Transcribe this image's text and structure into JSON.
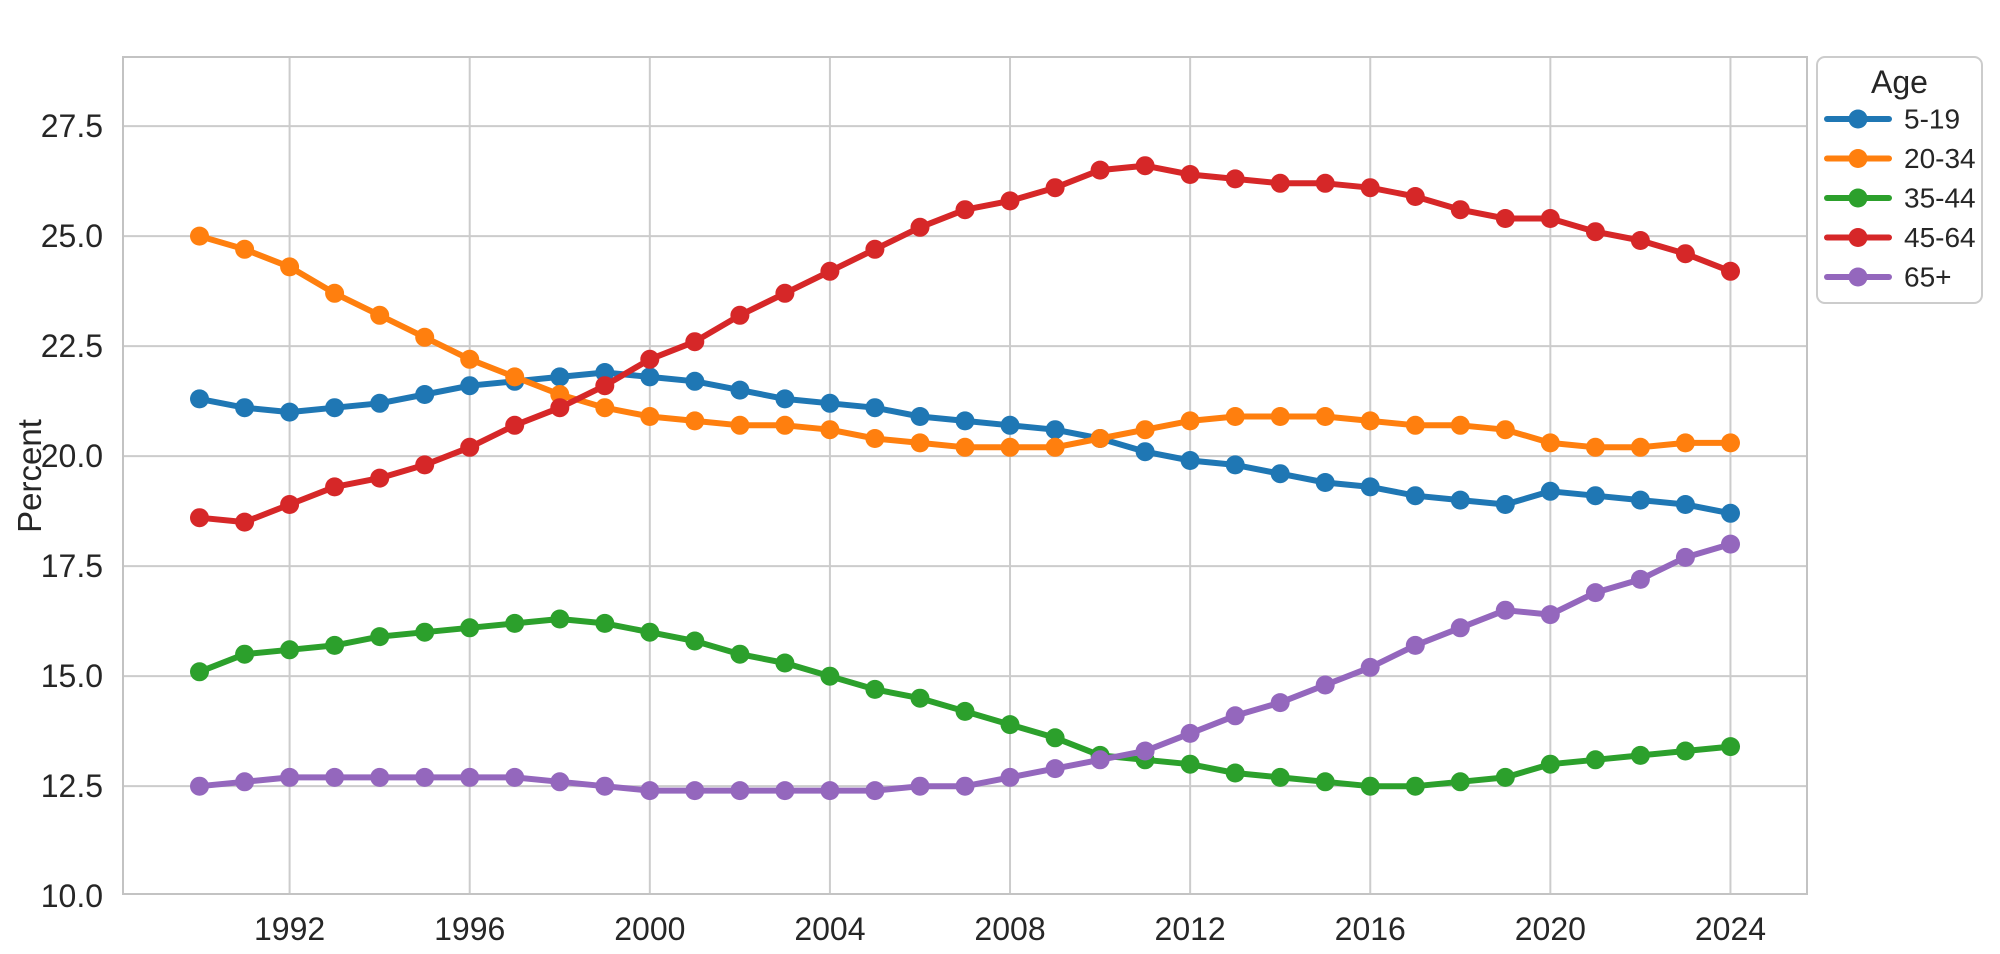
{
  "chart_data": {
    "type": "line",
    "title": "",
    "xlabel": "",
    "ylabel": "Percent",
    "grid": true,
    "background_color": "#ffffff",
    "grid_color": "#cccccc",
    "spine_color": "#c3c3c3",
    "text_color": "#262626",
    "xlim": [
      1988.3,
      2025.7
    ],
    "ylim": [
      10.05,
      29.07
    ],
    "xticks": [
      1992,
      1996,
      2000,
      2004,
      2008,
      2012,
      2016,
      2020,
      2024
    ],
    "yticks": [
      10.0,
      12.5,
      15.0,
      17.5,
      20.0,
      22.5,
      25.0,
      27.5
    ],
    "x": [
      1990,
      1991,
      1992,
      1993,
      1994,
      1995,
      1996,
      1997,
      1998,
      1999,
      2000,
      2001,
      2002,
      2003,
      2004,
      2005,
      2006,
      2007,
      2008,
      2009,
      2010,
      2011,
      2012,
      2013,
      2014,
      2015,
      2016,
      2017,
      2018,
      2019,
      2020,
      2021,
      2022,
      2023,
      2024
    ],
    "legend": {
      "title": "Age",
      "position": "upper-right-outside"
    },
    "series": [
      {
        "name": "5-19",
        "color": "#1f77b4",
        "values": [
          21.3,
          21.1,
          21.0,
          21.1,
          21.2,
          21.4,
          21.6,
          21.7,
          21.8,
          21.9,
          21.8,
          21.7,
          21.5,
          21.3,
          21.2,
          21.1,
          20.9,
          20.8,
          20.7,
          20.6,
          20.4,
          20.1,
          19.9,
          19.8,
          19.6,
          19.4,
          19.3,
          19.1,
          19.0,
          18.9,
          19.2,
          19.1,
          19.0,
          18.9,
          18.7
        ]
      },
      {
        "name": "20-34",
        "color": "#ff7f0e",
        "values": [
          25.0,
          24.7,
          24.3,
          23.7,
          23.2,
          22.7,
          22.2,
          21.8,
          21.4,
          21.1,
          20.9,
          20.8,
          20.7,
          20.7,
          20.6,
          20.4,
          20.3,
          20.2,
          20.2,
          20.2,
          20.4,
          20.6,
          20.8,
          20.9,
          20.9,
          20.9,
          20.8,
          20.7,
          20.7,
          20.6,
          20.3,
          20.2,
          20.2,
          20.3,
          20.3
        ]
      },
      {
        "name": "35-44",
        "color": "#2ca02c",
        "values": [
          15.1,
          15.5,
          15.6,
          15.7,
          15.9,
          16.0,
          16.1,
          16.2,
          16.3,
          16.2,
          16.0,
          15.8,
          15.5,
          15.3,
          15.0,
          14.7,
          14.5,
          14.2,
          13.9,
          13.6,
          13.2,
          13.1,
          13.0,
          12.8,
          12.7,
          12.6,
          12.5,
          12.5,
          12.6,
          12.7,
          13.0,
          13.1,
          13.2,
          13.3,
          13.4
        ]
      },
      {
        "name": "45-64",
        "color": "#d62728",
        "values": [
          18.6,
          18.5,
          18.9,
          19.3,
          19.5,
          19.8,
          20.2,
          20.7,
          21.1,
          21.6,
          22.2,
          22.6,
          23.2,
          23.7,
          24.2,
          24.7,
          25.2,
          25.6,
          25.8,
          26.1,
          26.5,
          26.6,
          26.4,
          26.3,
          26.2,
          26.2,
          26.1,
          25.9,
          25.6,
          25.4,
          25.4,
          25.1,
          24.9,
          24.6,
          24.2
        ]
      },
      {
        "name": "65+",
        "color": "#9467bd",
        "values": [
          12.5,
          12.6,
          12.7,
          12.7,
          12.7,
          12.7,
          12.7,
          12.7,
          12.6,
          12.5,
          12.4,
          12.4,
          12.4,
          12.4,
          12.4,
          12.4,
          12.5,
          12.5,
          12.7,
          12.9,
          13.1,
          13.3,
          13.7,
          14.1,
          14.4,
          14.8,
          15.2,
          15.7,
          16.1,
          16.5,
          16.4,
          16.9,
          17.2,
          17.7,
          18.0
        ]
      }
    ]
  }
}
